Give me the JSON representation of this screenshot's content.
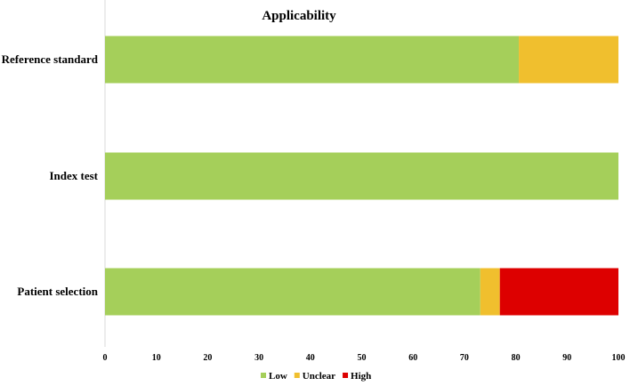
{
  "chart_data": {
    "type": "bar",
    "orientation": "horizontal",
    "stacked": true,
    "title": "Applicability",
    "xlabel": "",
    "ylabel": "",
    "categories": [
      "Reference standard",
      "Index test",
      "Patient selection"
    ],
    "series": [
      {
        "name": "Low",
        "color": "#a5cf5a",
        "values": [
          80.6,
          100,
          73.1
        ]
      },
      {
        "name": "Unclear",
        "color": "#f0bf2e",
        "values": [
          19.4,
          0,
          3.8
        ]
      },
      {
        "name": "High",
        "color": "#dd0000",
        "values": [
          0,
          0,
          23.1
        ]
      }
    ],
    "xlim": [
      0,
      100
    ],
    "xticks": [
      "0",
      "10",
      "20",
      "30",
      "40",
      "50",
      "60",
      "70",
      "80",
      "90",
      "100"
    ],
    "grid": false,
    "legend_position": "bottom"
  }
}
